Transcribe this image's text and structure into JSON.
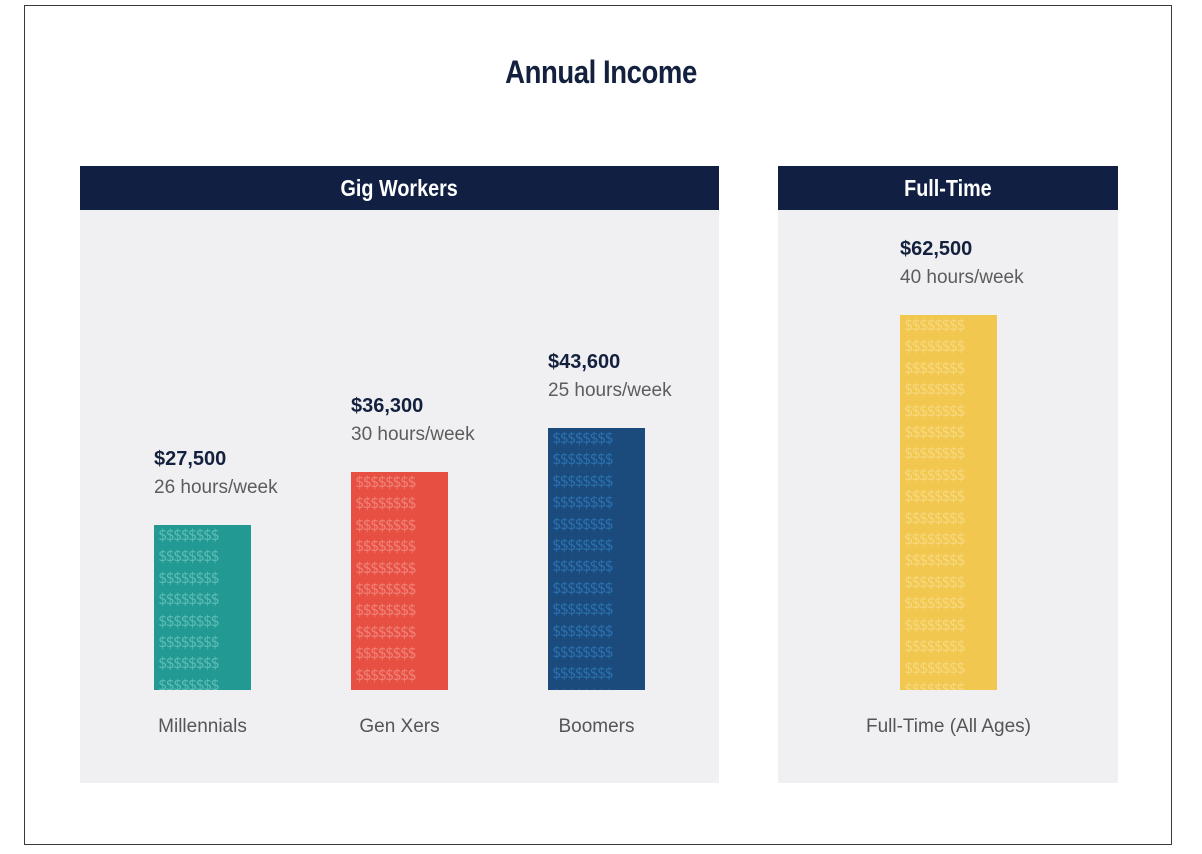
{
  "title": "Annual Income",
  "panels": {
    "gig": {
      "header": "Gig Workers"
    },
    "fulltime": {
      "header": "Full-Time"
    }
  },
  "chart_data": {
    "type": "bar",
    "title": "Annual Income",
    "xlabel": "",
    "ylabel": "",
    "ylim": [
      0,
      62500
    ],
    "groups": [
      "Gig Workers",
      "Full-Time"
    ],
    "categories": [
      "Millennials",
      "Gen Xers",
      "Boomers",
      "Full-Time (All Ages)"
    ],
    "values": [
      27500,
      36300,
      43600,
      62500
    ],
    "value_labels": [
      "$27,500",
      "$36,300",
      "$43,600",
      "$62,500"
    ],
    "hours_labels": [
      "26 hours/week",
      "30 hours/week",
      "25 hours/week",
      "40 hours/week"
    ],
    "bar_colors": [
      "#229a93",
      "#e74f43",
      "#1a4b7c",
      "#f2c74f"
    ],
    "pattern_colors": [
      "#8fd6cf",
      "#f6aca3",
      "#3a8fd8",
      "#fbe7a6"
    ],
    "pattern_glyph": "$$$$$$$$"
  }
}
